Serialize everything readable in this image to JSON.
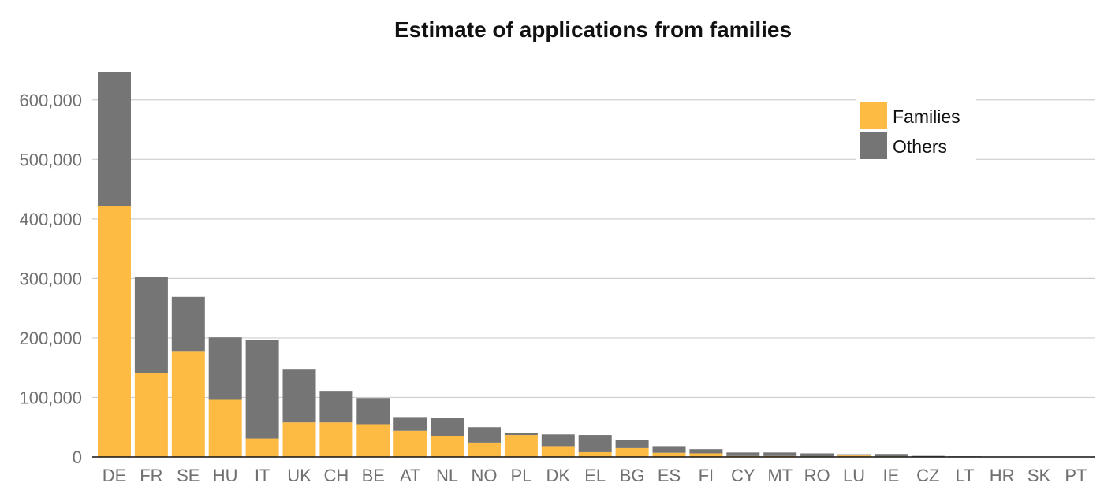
{
  "chart_data": {
    "type": "bar",
    "stacked": true,
    "title": "Estimate of applications from families",
    "xlabel": "",
    "ylabel": "",
    "ylim": [
      0,
      650000
    ],
    "y_ticks": [
      0,
      100000,
      200000,
      300000,
      400000,
      500000,
      600000
    ],
    "y_tick_labels": [
      "0",
      "100,000",
      "200,000",
      "300,000",
      "400,000",
      "500,000",
      "600,000"
    ],
    "grid": true,
    "legend_position": "top-right",
    "categories": [
      "DE",
      "FR",
      "SE",
      "HU",
      "IT",
      "UK",
      "CH",
      "BE",
      "AT",
      "NL",
      "NO",
      "PL",
      "DK",
      "EL",
      "BG",
      "ES",
      "FI",
      "CY",
      "MT",
      "RO",
      "LU",
      "IE",
      "CZ",
      "LT",
      "HR",
      "SK",
      "PT"
    ],
    "series": [
      {
        "name": "Families",
        "color": "#FDBB43",
        "values": [
          422000,
          141000,
          177000,
          96000,
          31000,
          58000,
          58000,
          55000,
          44000,
          35000,
          24000,
          37000,
          18000,
          8000,
          16000,
          7000,
          6000,
          1500,
          1500,
          1000,
          2500,
          1000,
          300,
          200,
          200,
          100,
          100
        ]
      },
      {
        "name": "Others",
        "color": "#757575",
        "values": [
          225000,
          162000,
          92000,
          105000,
          166000,
          90000,
          53000,
          44000,
          23000,
          31000,
          26000,
          4000,
          20000,
          29000,
          13000,
          11000,
          7000,
          6000,
          6000,
          5000,
          2000,
          4000,
          1500,
          800,
          500,
          400,
          400
        ]
      }
    ]
  }
}
